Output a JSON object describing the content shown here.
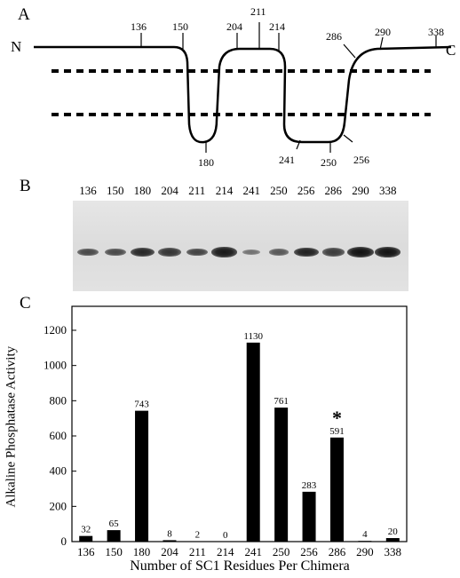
{
  "panels": {
    "a": "A",
    "b": "B",
    "c": "C"
  },
  "topology": {
    "n_term": "N",
    "c_term": "C",
    "residues_top": [
      "136",
      "150",
      "204",
      "211",
      "214",
      "286",
      "290",
      "338"
    ],
    "residues_bottom": [
      "180",
      "241",
      "250",
      "256"
    ]
  },
  "blot": {
    "lanes": [
      "136",
      "150",
      "180",
      "204",
      "211",
      "214",
      "241",
      "250",
      "256",
      "286",
      "290",
      "338"
    ],
    "band_intensity": [
      0.55,
      0.55,
      0.8,
      0.7,
      0.6,
      0.9,
      0.25,
      0.45,
      0.85,
      0.65,
      0.95,
      0.95
    ]
  },
  "chart_data": {
    "type": "bar",
    "categories": [
      "136",
      "150",
      "180",
      "204",
      "211",
      "214",
      "241",
      "250",
      "256",
      "286",
      "290",
      "338"
    ],
    "values": [
      32,
      65,
      743,
      8,
      2,
      0,
      1130,
      761,
      283,
      591,
      4,
      20
    ],
    "data_labels": [
      "32",
      "65",
      "743",
      "8",
      "2",
      "0",
      "1130",
      "761",
      "283",
      "591",
      "4",
      "20"
    ],
    "ylabel": "Alkaline Phosphatase Activity",
    "xlabel": "Number of SC1 Residues Per Chimera",
    "ylim": [
      0,
      1200
    ],
    "yticks": [
      "0",
      "200",
      "400",
      "600",
      "800",
      "1000",
      "1200"
    ],
    "asterisk": "*",
    "grid": false
  }
}
